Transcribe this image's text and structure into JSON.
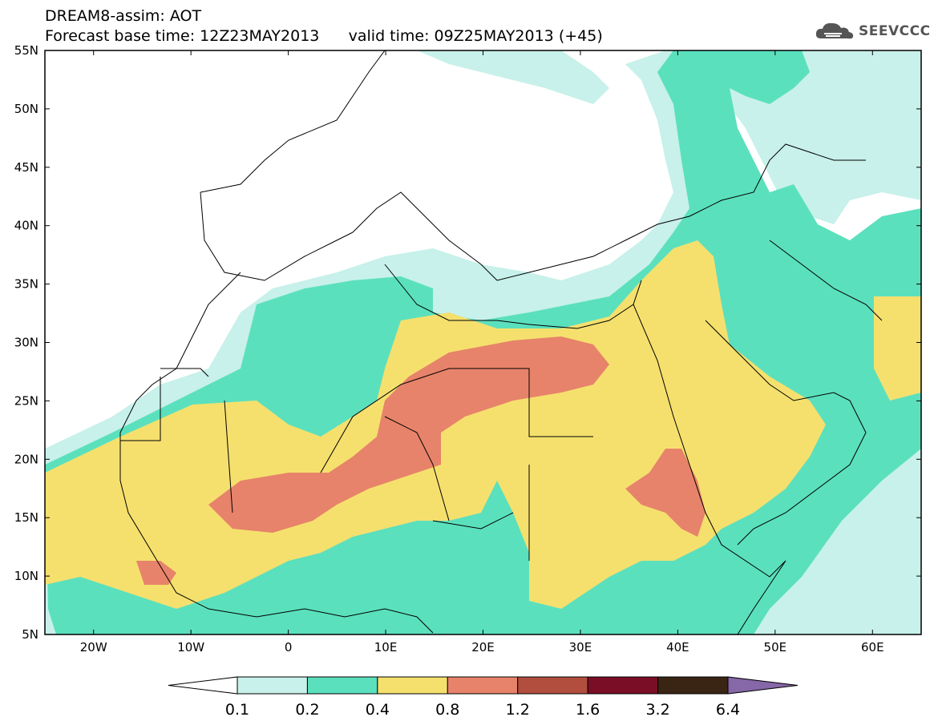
{
  "header": {
    "title_line1": "DREAM8-assim: AOT",
    "title_line2": "Forecast base time: 12Z23MAY2013      valid time: 09Z25MAY2013 (+45)"
  },
  "logo": {
    "text": "SEEVCCC",
    "icon": "cloud-icon"
  },
  "map": {
    "lat_labels": [
      "55N",
      "50N",
      "45N",
      "40N",
      "35N",
      "30N",
      "25N",
      "20N",
      "15N",
      "10N",
      "5N"
    ],
    "lon_labels": [
      "20W",
      "10W",
      "0",
      "10E",
      "20E",
      "30E",
      "40E",
      "50E",
      "60E"
    ],
    "extent": {
      "lon": [
        -25,
        65
      ],
      "lat": [
        5,
        55
      ]
    }
  },
  "legend": {
    "colors": [
      "#c7f1ea",
      "#5be0bd",
      "#f5e06e",
      "#e7836a",
      "#b14e3e",
      "#7a0e26",
      "#3a2414",
      "#8667a8"
    ],
    "labels": [
      "0.1",
      "0.2",
      "0.4",
      "0.8",
      "1.2",
      "1.6",
      "3.2",
      "6.4"
    ]
  }
}
